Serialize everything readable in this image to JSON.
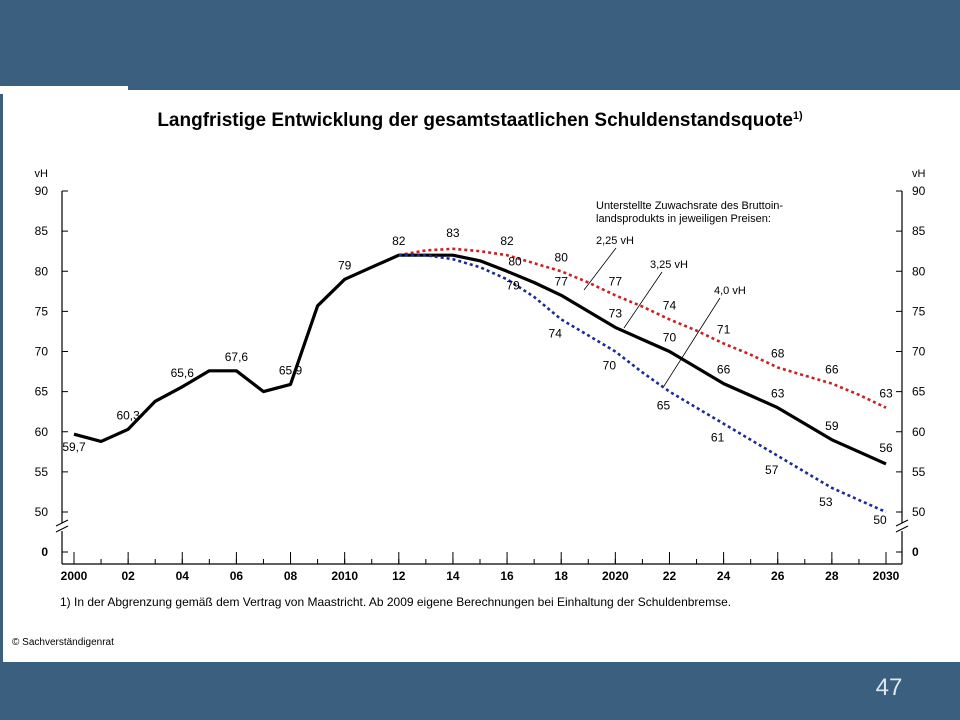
{
  "slide": {
    "page_number": "47"
  },
  "chart_data": {
    "type": "line",
    "title": "Langfristige Entwicklung der gesamtstaatlichen Schuldenstandsquote",
    "title_footnote_mark": "1)",
    "unit_left": "vH",
    "unit_right": "vH",
    "y_ticks": [
      "90",
      "85",
      "80",
      "75",
      "70",
      "65",
      "60",
      "55",
      "50"
    ],
    "y_ticks_numeric": [
      90,
      85,
      80,
      75,
      70,
      65,
      60,
      55,
      50
    ],
    "y_zero_label": "0",
    "ylim": [
      50,
      90
    ],
    "axis_break": true,
    "xlim": [
      2000,
      2030
    ],
    "x_ticks": [
      {
        "x": 2000,
        "label": "2000"
      },
      {
        "x": 2002,
        "label": "02"
      },
      {
        "x": 2004,
        "label": "04"
      },
      {
        "x": 2006,
        "label": "06"
      },
      {
        "x": 2008,
        "label": "08"
      },
      {
        "x": 2010,
        "label": "2010"
      },
      {
        "x": 2012,
        "label": "12"
      },
      {
        "x": 2014,
        "label": "14"
      },
      {
        "x": 2016,
        "label": "16"
      },
      {
        "x": 2018,
        "label": "18"
      },
      {
        "x": 2020,
        "label": "2020"
      },
      {
        "x": 2022,
        "label": "22"
      },
      {
        "x": 2024,
        "label": "24"
      },
      {
        "x": 2026,
        "label": "26"
      },
      {
        "x": 2028,
        "label": "28"
      },
      {
        "x": 2030,
        "label": "2030"
      }
    ],
    "legend_lines": [
      "Unterstellte Zuwachsrate des Bruttoin-",
      "landsprodukts in jeweiligen Preisen:"
    ],
    "series": [
      {
        "name": "2,25 vH",
        "style": "dotted",
        "color": "#cc2020",
        "points": [
          [
            2012,
            82
          ],
          [
            2013,
            82.6
          ],
          [
            2014,
            82.8
          ],
          [
            2015,
            82.5
          ],
          [
            2016,
            82
          ],
          [
            2017,
            81
          ],
          [
            2018,
            80
          ],
          [
            2019,
            78.6
          ],
          [
            2020,
            77
          ],
          [
            2021,
            75.6
          ],
          [
            2022,
            74
          ],
          [
            2023,
            72.6
          ],
          [
            2024,
            71
          ],
          [
            2025,
            69.6
          ],
          [
            2026,
            68
          ],
          [
            2027,
            67
          ],
          [
            2028,
            66
          ],
          [
            2029,
            64.6
          ],
          [
            2030,
            63
          ]
        ],
        "labels": [
          {
            "x": 2014,
            "y": 83,
            "text": "83"
          },
          {
            "x": 2016,
            "y": 82,
            "text": "82"
          },
          {
            "x": 2018,
            "y": 80,
            "text": "80"
          },
          {
            "x": 2020,
            "y": 77,
            "text": "77"
          },
          {
            "x": 2022,
            "y": 74,
            "text": "74"
          },
          {
            "x": 2024,
            "y": 71,
            "text": "71"
          },
          {
            "x": 2026,
            "y": 68,
            "text": "68"
          },
          {
            "x": 2028,
            "y": 66,
            "text": "66"
          },
          {
            "x": 2030,
            "y": 63,
            "text": "63"
          }
        ]
      },
      {
        "name": "3,25 vH",
        "style": "solid",
        "color": "#000000",
        "points": [
          [
            2000,
            59.7
          ],
          [
            2001,
            58.8
          ],
          [
            2002,
            60.3
          ],
          [
            2003,
            63.8
          ],
          [
            2004,
            65.6
          ],
          [
            2005,
            67.6
          ],
          [
            2006,
            67.6
          ],
          [
            2007,
            65
          ],
          [
            2008,
            65.9
          ],
          [
            2009,
            75.7
          ],
          [
            2010,
            79
          ],
          [
            2011,
            80.5
          ],
          [
            2012,
            82
          ],
          [
            2013,
            82
          ],
          [
            2014,
            82
          ],
          [
            2015,
            81.3
          ],
          [
            2016,
            80
          ],
          [
            2017,
            78.6
          ],
          [
            2018,
            77
          ],
          [
            2019,
            75
          ],
          [
            2020,
            73
          ],
          [
            2021,
            71.5
          ],
          [
            2022,
            70
          ],
          [
            2023,
            68
          ],
          [
            2024,
            66
          ],
          [
            2025,
            64.5
          ],
          [
            2026,
            63
          ],
          [
            2027,
            61
          ],
          [
            2028,
            59
          ],
          [
            2029,
            57.5
          ],
          [
            2030,
            56
          ]
        ],
        "labels": [
          {
            "x": 2000,
            "y": 59.7,
            "text": "59,7"
          },
          {
            "x": 2002,
            "y": 60.3,
            "text": "60,3"
          },
          {
            "x": 2004,
            "y": 65.6,
            "text": "65,6"
          },
          {
            "x": 2006,
            "y": 67.6,
            "text": "67,6"
          },
          {
            "x": 2008,
            "y": 65.9,
            "text": "65,9"
          },
          {
            "x": 2010,
            "y": 79,
            "text": "79"
          },
          {
            "x": 2012,
            "y": 82,
            "text": "82"
          },
          {
            "x": 2016,
            "y": 80,
            "text": "80"
          },
          {
            "x": 2018,
            "y": 77,
            "text": "77"
          },
          {
            "x": 2020,
            "y": 73,
            "text": "73"
          },
          {
            "x": 2022,
            "y": 70,
            "text": "70"
          },
          {
            "x": 2024,
            "y": 66,
            "text": "66"
          },
          {
            "x": 2026,
            "y": 63,
            "text": "63"
          },
          {
            "x": 2028,
            "y": 59,
            "text": "59"
          },
          {
            "x": 2030,
            "y": 56,
            "text": "56"
          }
        ]
      },
      {
        "name": "4,0 vH",
        "style": "dotted",
        "color": "#1a2a9a",
        "points": [
          [
            2012,
            82
          ],
          [
            2013,
            82
          ],
          [
            2014,
            81.5
          ],
          [
            2015,
            80.5
          ],
          [
            2016,
            79
          ],
          [
            2017,
            76.8
          ],
          [
            2018,
            74
          ],
          [
            2019,
            72
          ],
          [
            2020,
            70
          ],
          [
            2021,
            67.4
          ],
          [
            2022,
            65
          ],
          [
            2023,
            63
          ],
          [
            2024,
            61
          ],
          [
            2025,
            59
          ],
          [
            2026,
            57
          ],
          [
            2027,
            55
          ],
          [
            2028,
            53
          ],
          [
            2029,
            51.5
          ],
          [
            2030,
            50
          ]
        ],
        "labels": [
          {
            "x": 2016,
            "y": 79,
            "text": "79"
          },
          {
            "x": 2018,
            "y": 74,
            "text": "74"
          },
          {
            "x": 2020,
            "y": 70,
            "text": "70"
          },
          {
            "x": 2022,
            "y": 65,
            "text": "65"
          },
          {
            "x": 2024,
            "y": 61,
            "text": "61"
          },
          {
            "x": 2026,
            "y": 57,
            "text": "57"
          },
          {
            "x": 2028,
            "y": 53,
            "text": "53"
          },
          {
            "x": 2030,
            "y": 50,
            "text": "50"
          }
        ]
      }
    ],
    "footnote": "1) In der Abgrenzung gemäß dem Vertrag von Maastricht. Ab 2009 eigene Berechnungen bei Einhaltung der Schuldenbremse.",
    "copyright": "© Sachverständigenrat"
  }
}
